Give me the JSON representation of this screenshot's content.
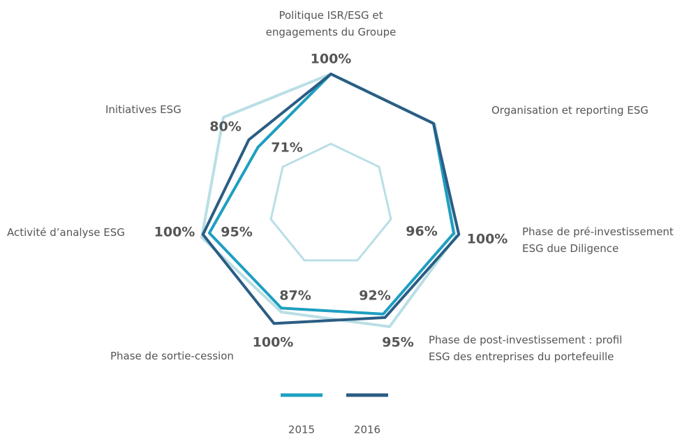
{
  "chart_data": {
    "type": "radar",
    "categories": [
      "Politique ISR/ESG et\nengagements du Groupe",
      "Organisation et reporting ESG",
      "Phase de pré-investissement\nESG due Diligence",
      "Phase de post-investissement : profil\nESG des entreprises du portefeuille",
      "Phase de sortie-cession",
      "Activité d’analyse ESG",
      "Initiatives ESG"
    ],
    "rlim": [
      0,
      100
    ],
    "series": [
      {
        "name": "2015",
        "color": "#1d9fc1",
        "values": [
          100,
          100,
          96,
          92,
          87,
          95,
          71
        ],
        "value_labels": [
          null,
          null,
          "96%",
          "92%",
          "87%",
          "95%",
          "71%"
        ]
      },
      {
        "name": "2016",
        "color": "#2b5d84",
        "values": [
          100,
          100,
          100,
          95,
          100,
          100,
          80
        ],
        "value_labels": [
          "100%",
          null,
          "100%",
          "95%",
          "100%",
          "100%",
          "80%"
        ]
      }
    ]
  }
}
